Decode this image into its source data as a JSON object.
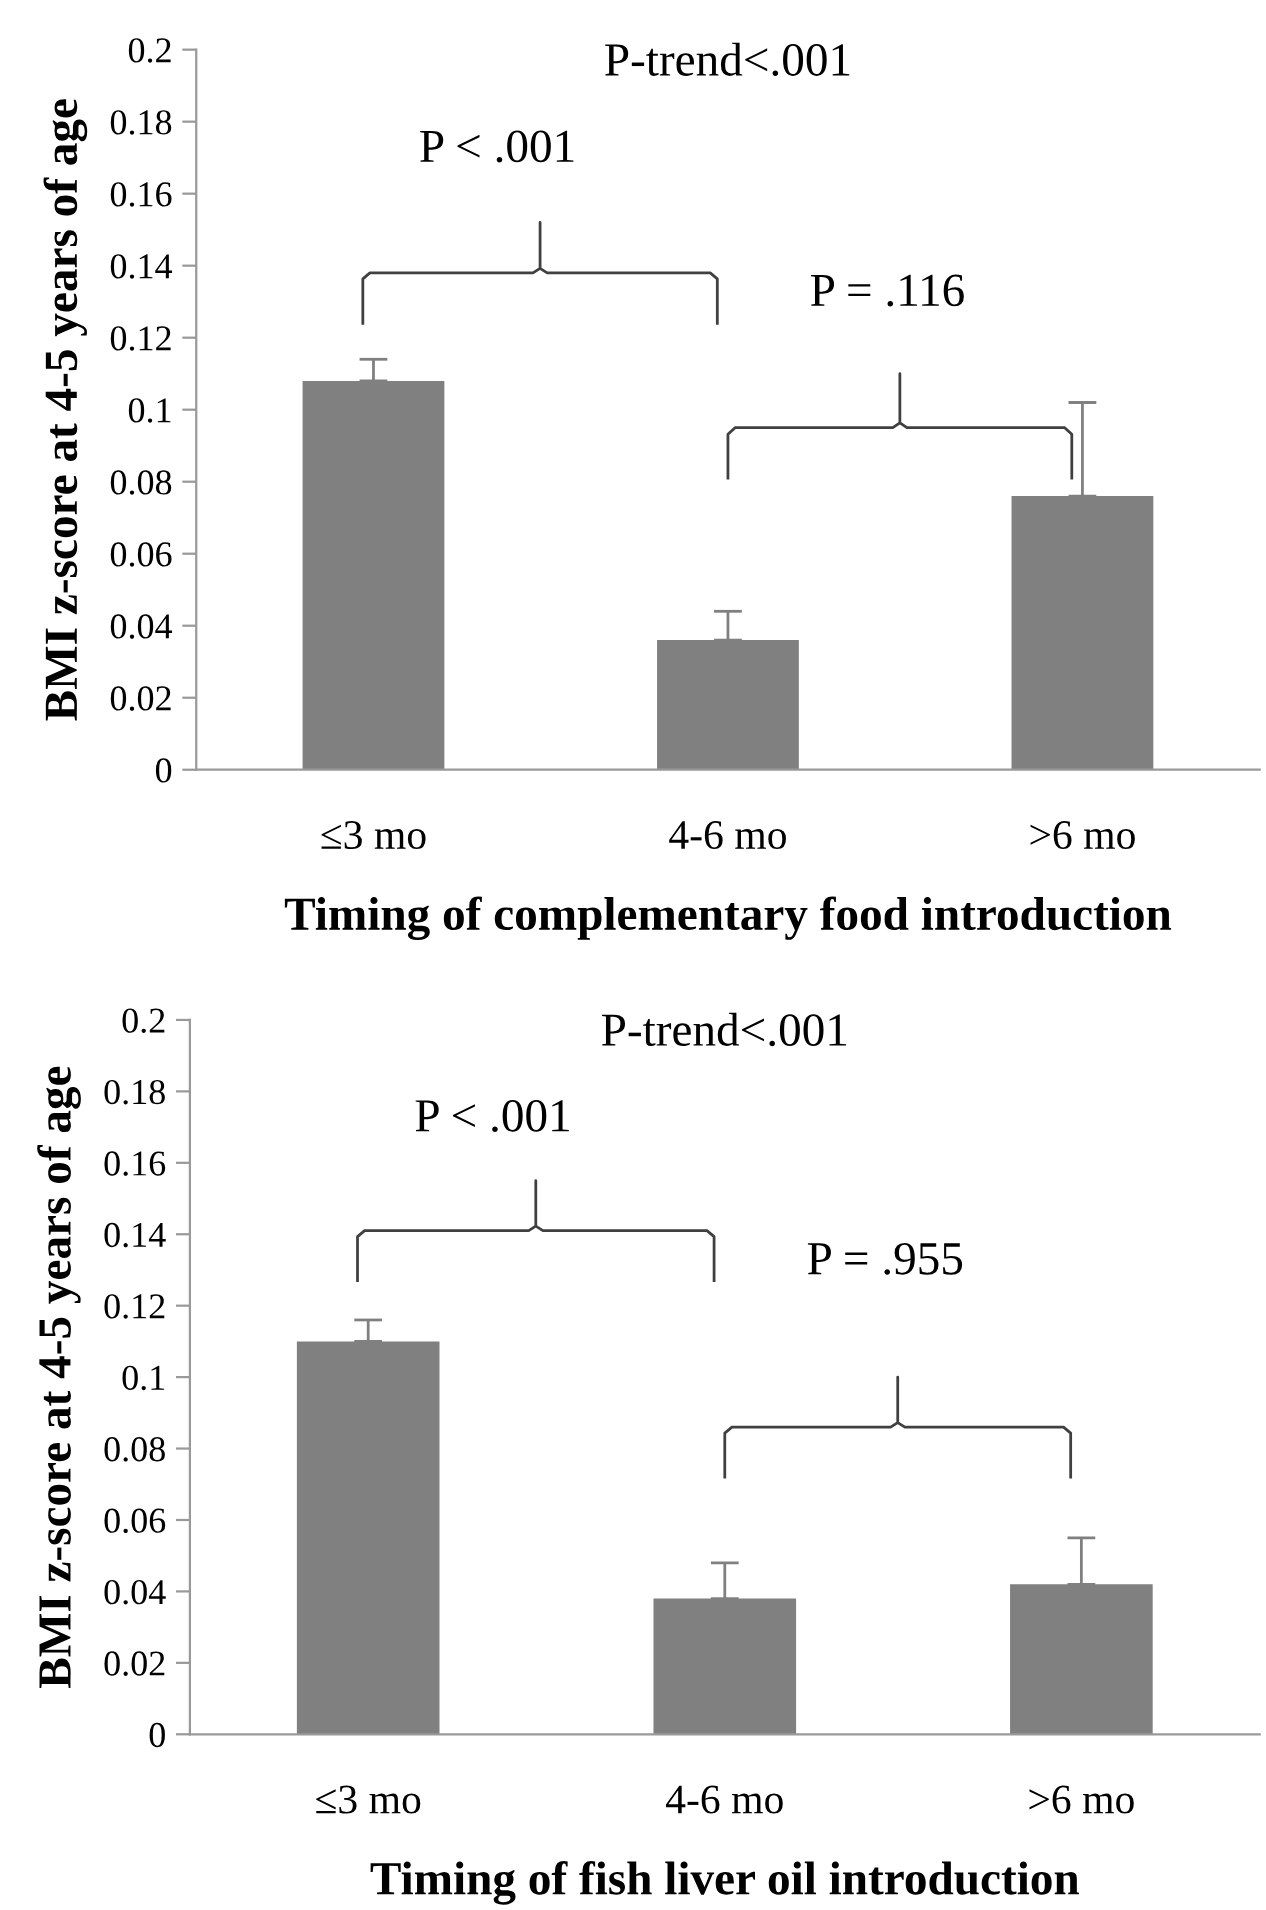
{
  "chart_data": [
    {
      "type": "bar",
      "xlabel": "Timing of complementary food introduction",
      "ylabel": "BMI z-score at 4-5 years of age",
      "categories": [
        "≤3 mo",
        "4-6 mo",
        ">6 mo"
      ],
      "values": [
        0.108,
        0.036,
        0.076
      ],
      "errors": [
        [
          0.108,
          0.114
        ],
        [
          0.036,
          0.044
        ],
        [
          0.076,
          0.102
        ]
      ],
      "color": "#808080",
      "ylim": [
        0,
        0.2
      ],
      "yticks": [
        0,
        0.02,
        0.04,
        0.06,
        0.08,
        0.1,
        0.12,
        0.14,
        0.16,
        0.18,
        0.2
      ],
      "grid": false,
      "legend": false,
      "annotations": [
        "P-trend<.001",
        "P < .001",
        "P = .116"
      ]
    },
    {
      "type": "bar",
      "xlabel": "Timing of fish liver oil introduction",
      "ylabel": "BMI z-score at 4-5 years of age",
      "categories": [
        "≤3 mo",
        "4-6 mo",
        ">6 mo"
      ],
      "values": [
        0.11,
        0.038,
        0.042
      ],
      "errors": [
        [
          0.11,
          0.116
        ],
        [
          0.038,
          0.048
        ],
        [
          0.042,
          0.055
        ]
      ],
      "color": "#808080",
      "ylim": [
        0,
        0.2
      ],
      "yticks": [
        0,
        0.02,
        0.04,
        0.06,
        0.08,
        0.1,
        0.12,
        0.14,
        0.16,
        0.18,
        0.2
      ],
      "grid": false,
      "legend": false,
      "annotations": [
        "P-trend<.001",
        "P < .001",
        "P = .955"
      ]
    }
  ]
}
